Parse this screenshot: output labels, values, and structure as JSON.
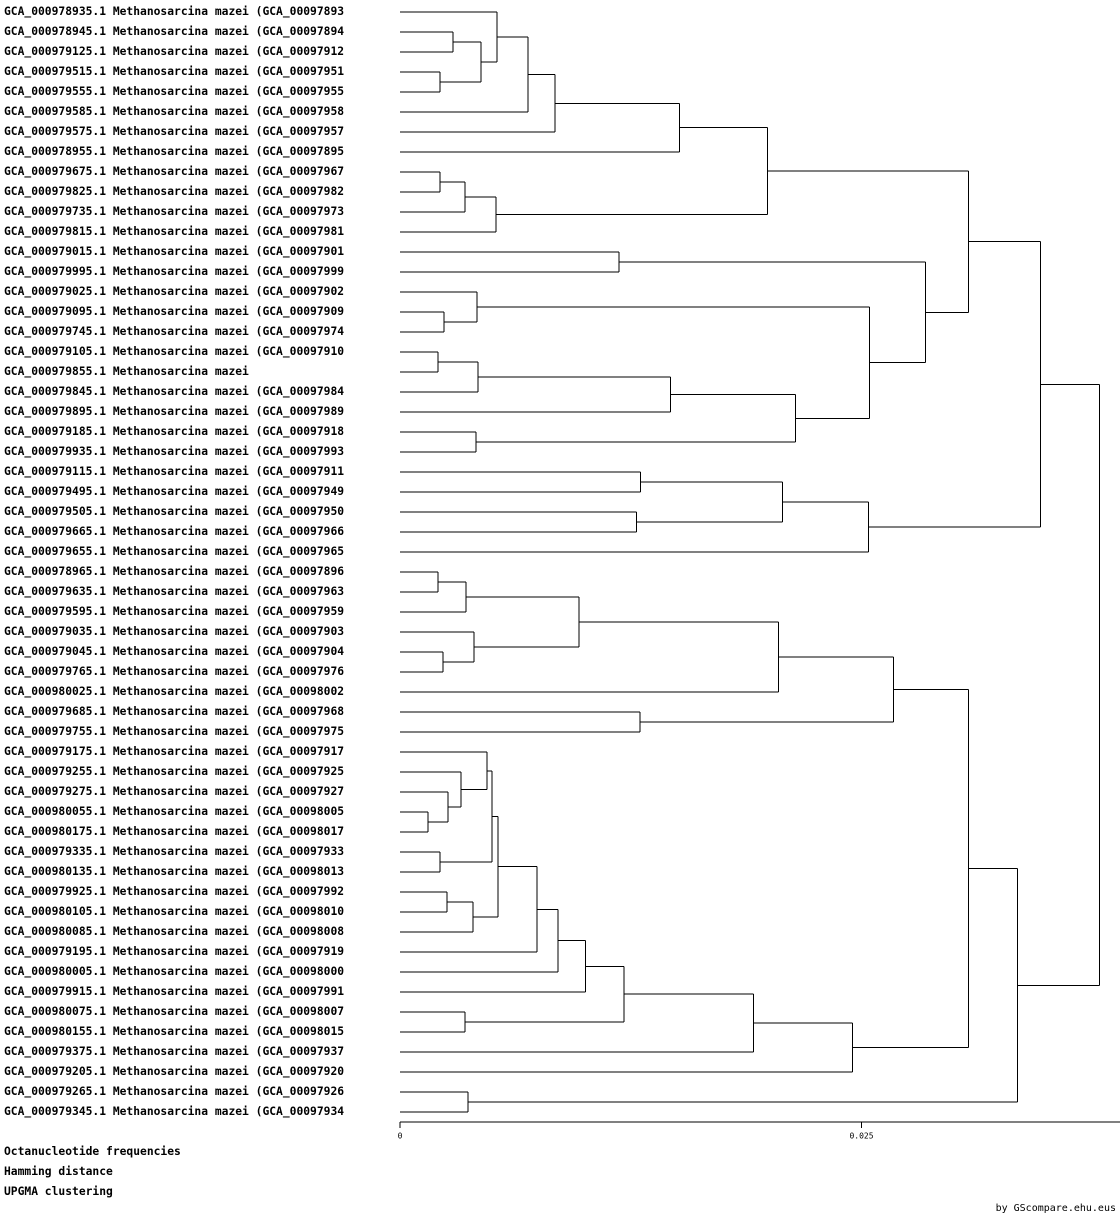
{
  "tree": {
    "height": 0.03788,
    "children": [
      {
        "height": 0.03469,
        "children": [
          {
            "height": 0.03079,
            "children": [
              {
                "height": 0.01991,
                "children": [
                  {
                    "height": 0.01515,
                    "children": [
                      {
                        "height": 0.00839,
                        "children": [
                          {
                            "height": 0.00693,
                            "children": [
                              {
                                "height": 0.00525,
                                "children": [
                                  "GCA_000978935.1 Methanosarcina mazei (GCA_00097893",
                                  {
                                    "height": 0.00438,
                                    "children": [
                                      {
                                        "height": 0.00287,
                                        "children": [
                                          "GCA_000978945.1 Methanosarcina mazei (GCA_00097894",
                                          "GCA_000979125.1 Methanosarcina mazei (GCA_00097912"
                                        ]
                                      },
                                      {
                                        "height": 0.00216,
                                        "children": [
                                          "GCA_000979515.1 Methanosarcina mazei (GCA_00097951",
                                          "GCA_000979555.1 Methanosarcina mazei (GCA_00097955"
                                        ]
                                      }
                                    ]
                                  }
                                ]
                              },
                              "GCA_000979585.1 Methanosarcina mazei (GCA_00097958"
                            ]
                          },
                          "GCA_000979575.1 Methanosarcina mazei (GCA_00097957"
                        ]
                      },
                      "GCA_000978955.1 Methanosarcina mazei (GCA_00097895"
                    ]
                  },
                  {
                    "height": 0.00519,
                    "children": [
                      {
                        "height": 0.00352,
                        "children": [
                          {
                            "height": 0.00216,
                            "children": [
                              "GCA_000979675.1 Methanosarcina mazei (GCA_00097967",
                              "GCA_000979825.1 Methanosarcina mazei (GCA_00097982"
                            ]
                          },
                          "GCA_000979735.1 Methanosarcina mazei (GCA_00097973"
                        ]
                      },
                      "GCA_000979815.1 Methanosarcina mazei (GCA_00097981"
                    ]
                  }
                ]
              },
              {
                "height": 0.02846,
                "children": [
                  {
                    "height": 0.01185,
                    "children": [
                      "GCA_000979015.1 Methanosarcina mazei (GCA_00097901",
                      "GCA_000979995.1 Methanosarcina mazei (GCA_00097999"
                    ]
                  },
                  {
                    "height": 0.02543,
                    "children": [
                      {
                        "height": 0.00417,
                        "children": [
                          "GCA_000979025.1 Methanosarcina mazei (GCA_00097902",
                          {
                            "height": 0.00238,
                            "children": [
                              "GCA_000979095.1 Methanosarcina mazei (GCA_00097909",
                              "GCA_000979745.1 Methanosarcina mazei (GCA_00097974"
                            ]
                          }
                        ]
                      },
                      {
                        "height": 0.02143,
                        "children": [
                          {
                            "height": 0.01466,
                            "children": [
                              {
                                "height": 0.00422,
                                "children": [
                                  {
                                    "height": 0.00206,
                                    "children": [
                                      "GCA_000979105.1 Methanosarcina mazei (GCA_00097910",
                                      "GCA_000979855.1 Methanosarcina mazei"
                                    ]
                                  },
                                  "GCA_000979845.1 Methanosarcina mazei (GCA_00097984"
                                ]
                              },
                              "GCA_000979895.1 Methanosarcina mazei (GCA_00097989"
                            ]
                          },
                          {
                            "height": 0.00411,
                            "children": [
                              "GCA_000979185.1 Methanosarcina mazei (GCA_00097918",
                              "GCA_000979935.1 Methanosarcina mazei (GCA_00097993"
                            ]
                          }
                        ]
                      }
                    ]
                  }
                ]
              }
            ]
          },
          {
            "height": 0.02538,
            "children": [
              {
                "height": 0.02073,
                "children": [
                  {
                    "height": 0.01304,
                    "children": [
                      "GCA_000979115.1 Methanosarcina mazei (GCA_00097911",
                      "GCA_000979495.1 Methanosarcina mazei (GCA_00097949"
                    ]
                  },
                  {
                    "height": 0.01282,
                    "children": [
                      "GCA_000979505.1 Methanosarcina mazei (GCA_00097950",
                      "GCA_000979665.1 Methanosarcina mazei (GCA_00097966"
                    ]
                  }
                ]
              },
              "GCA_000979655.1 Methanosarcina mazei (GCA_00097965"
            ]
          }
        ]
      },
      {
        "height": 0.03344,
        "children": [
          {
            "height": 0.03079,
            "children": [
              {
                "height": 0.02673,
                "children": [
                  {
                    "height": 0.02051,
                    "children": [
                      {
                        "height": 0.00969,
                        "children": [
                          {
                            "height": 0.00357,
                            "children": [
                              {
                                "height": 0.00206,
                                "children": [
                                  "GCA_000978965.1 Methanosarcina mazei (GCA_00097896",
                                  "GCA_000979635.1 Methanosarcina mazei (GCA_00097963"
                                ]
                              },
                              "GCA_000979595.1 Methanosarcina mazei (GCA_00097959"
                            ]
                          },
                          {
                            "height": 0.004,
                            "children": [
                              "GCA_000979035.1 Methanosarcina mazei (GCA_00097903",
                              {
                                "height": 0.00233,
                                "children": [
                                  "GCA_000979045.1 Methanosarcina mazei (GCA_00097904",
                                  "GCA_000979765.1 Methanosarcina mazei (GCA_00097976"
                                ]
                              }
                            ]
                          }
                        ]
                      },
                      "GCA_000980025.1 Methanosarcina mazei (GCA_00098002"
                    ]
                  },
                  {
                    "height": 0.01299,
                    "children": [
                      "GCA_000979685.1 Methanosarcina mazei (GCA_00097968",
                      "GCA_000979755.1 Methanosarcina mazei (GCA_00097975"
                    ]
                  }
                ]
              },
              {
                "height": 0.02451,
                "children": [
                  {
                    "height": 0.01916,
                    "children": [
                      {
                        "height": 0.01212,
                        "children": [
                          {
                            "height": 0.01006,
                            "children": [
                              {
                                "height": 0.00855,
                                "children": [
                                  {
                                    "height": 0.00741,
                                    "children": [
                                      {
                                        "height": 0.0053,
                                        "children": [
                                          {
                                            "height": 0.00498,
                                            "children": [
                                              {
                                                "height": 0.00471,
                                                "children": [
                                                  "GCA_000979175.1 Methanosarcina mazei (GCA_00097917",
                                                  {
                                                    "height": 0.0033,
                                                    "children": [
                                                      "GCA_000979255.1 Methanosarcina mazei (GCA_00097925",
                                                      {
                                                        "height": 0.0026,
                                                        "children": [
                                                          "GCA_000979275.1 Methanosarcina mazei (GCA_00097927",
                                                          {
                                                            "height": 0.00152,
                                                            "children": [
                                                              "GCA_000980055.1 Methanosarcina mazei (GCA_00098005",
                                                              "GCA_000980175.1 Methanosarcina mazei (GCA_00098017"
                                                            ]
                                                          }
                                                        ]
                                                      }
                                                    ]
                                                  }
                                                ]
                                              },
                                              {
                                                "height": 0.00216,
                                                "children": [
                                                  "GCA_000979335.1 Methanosarcina mazei (GCA_00097933",
                                                  "GCA_000980135.1 Methanosarcina mazei (GCA_00098013"
                                                ]
                                              }
                                            ]
                                          },
                                          {
                                            "height": 0.00395,
                                            "children": [
                                              {
                                                "height": 0.00254,
                                                "children": [
                                                  "GCA_000979925.1 Methanosarcina mazei (GCA_00097992",
                                                  "GCA_000980105.1 Methanosarcina mazei (GCA_00098010"
                                                ]
                                              },
                                              "GCA_000980085.1 Methanosarcina mazei (GCA_00098008"
                                            ]
                                          }
                                        ]
                                      },
                                      "GCA_000979195.1 Methanosarcina mazei (GCA_00097919"
                                    ]
                                  },
                                  "GCA_000980005.1 Methanosarcina mazei (GCA_00098000"
                                ]
                              },
                              "GCA_000979915.1 Methanosarcina mazei (GCA_00097991"
                            ]
                          },
                          {
                            "height": 0.00352,
                            "children": [
                              "GCA_000980075.1 Methanosarcina mazei (GCA_00098007",
                              "GCA_000980155.1 Methanosarcina mazei (GCA_00098015"
                            ]
                          }
                        ]
                      },
                      "GCA_000979375.1 Methanosarcina mazei (GCA_00097937"
                    ]
                  },
                  "GCA_000979205.1 Methanosarcina mazei (GCA_00097920"
                ]
              }
            ]
          },
          {
            "height": 0.00368,
            "children": [
              "GCA_000979265.1 Methanosarcina mazei (GCA_00097926",
              "GCA_000979345.1 Methanosarcina mazei (GCA_00097934"
            ]
          }
        ]
      }
    ]
  },
  "axis": {
    "xlim": [
      0,
      0.039
    ],
    "xticks": [
      0,
      0.025
    ]
  },
  "footer": {
    "method": [
      "Octanucleotide frequencies",
      "Hamming distance",
      "UPGMA clustering"
    ],
    "credit": "by GScompare.ehu.eus"
  }
}
